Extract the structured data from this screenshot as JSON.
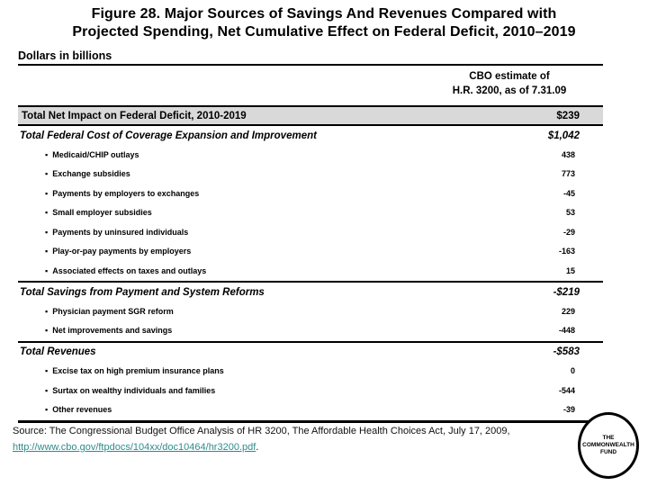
{
  "slide": {
    "title_lines": [
      "Figure 28. Major Sources of Savings And Revenues Compared with",
      "Projected Spending, Net Cumulative Effect on Federal Deficit, 2010–2019"
    ],
    "subtitle": "Dollars in billions"
  },
  "table": {
    "column_header": {
      "line1": "CBO estimate of",
      "line2": "H.R. 3200, as of 7.31.09"
    },
    "bullet_char": "▪",
    "rows": [
      {
        "label": "Total Net Impact on Federal Deficit, 2010-2019",
        "value": "$239",
        "style": "total-gray"
      },
      {
        "label": "Total Federal Cost of Coverage Expansion and Improvement",
        "value": "$1,042",
        "style": "total-italic"
      },
      {
        "label": "Medicaid/CHIP outlays",
        "value": "438",
        "style": "bullet"
      },
      {
        "label": "Exchange subsidies",
        "value": "773",
        "style": "bullet"
      },
      {
        "label": "Payments by employers to exchanges",
        "value": "-45",
        "style": "bullet"
      },
      {
        "label": "Small employer subsidies",
        "value": "53",
        "style": "bullet"
      },
      {
        "label": "Payments by uninsured individuals",
        "value": "-29",
        "style": "bullet"
      },
      {
        "label": "Play-or-pay payments by employers",
        "value": "-163",
        "style": "bullet"
      },
      {
        "label": "Associated effects on taxes and outlays",
        "value": "15",
        "style": "bullet"
      },
      {
        "label": "Total Savings from Payment and System Reforms",
        "value": "-$219",
        "style": "total-italic",
        "border_top": true
      },
      {
        "label": "Physician payment SGR reform",
        "value": "229",
        "style": "bullet"
      },
      {
        "label": "Net improvements and savings",
        "value": "-448",
        "style": "bullet"
      },
      {
        "label": "Total Revenues",
        "value": "-$583",
        "style": "total-italic",
        "border_top": true
      },
      {
        "label": "Excise tax on high premium insurance plans",
        "value": "0",
        "style": "bullet"
      },
      {
        "label": "Surtax on wealthy individuals and families",
        "value": "-544",
        "style": "bullet"
      },
      {
        "label": "Other revenues",
        "value": "-39",
        "style": "bullet"
      }
    ]
  },
  "footer": {
    "source_text": "Source: The Congressional Budget Office Analysis of HR 3200, The Affordable Health Choices Act, July 17, 2009,",
    "source_link": "http://www.cbo.gov/ftpdocs/104xx/doc10464/hr3200.pdf",
    "source_suffix": ".",
    "logo": {
      "line1": "THE",
      "line2": "COMMONWEALTH",
      "line3": "FUND"
    }
  },
  "colors": {
    "link_teal": "#2E8C8C",
    "gray_row_bg": "#D9D9D9",
    "text": "#000000"
  }
}
